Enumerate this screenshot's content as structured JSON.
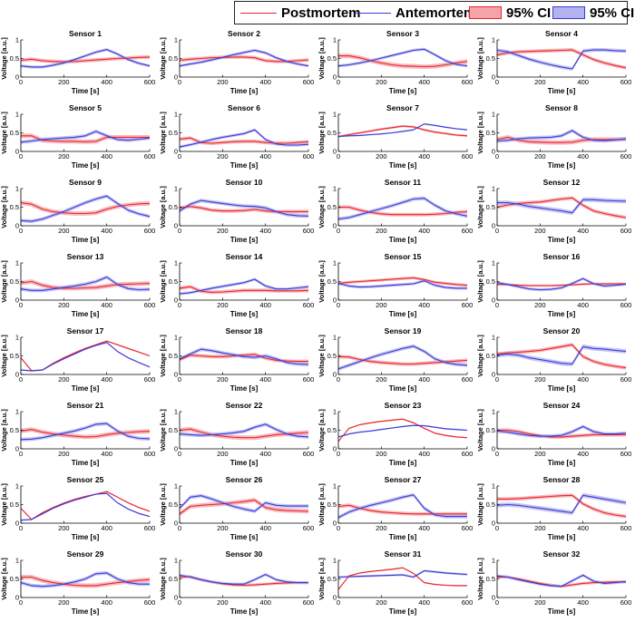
{
  "legend": {
    "postmortem_label": "Postmortem",
    "antemortem_label": "Antemortem",
    "ci_post_label": "95% CI",
    "ci_ante_label": "95% CI"
  },
  "colors": {
    "postmortem": "#e8272f",
    "antemortem": "#3b3bd6",
    "postmortem_ci": "#f4a3a8",
    "antemortem_ci": "#b3b3f0"
  },
  "chart_data": {
    "type": "line",
    "grid": false,
    "legend_position": "top",
    "layout": "8 rows x 4 columns of subplots",
    "x_label": "Time [s]",
    "y_label": "Voltage [a.u.]",
    "xlim": [
      0,
      600
    ],
    "ylim": [
      0,
      1
    ],
    "x_ticks": [
      0,
      200,
      400,
      600
    ],
    "y_ticks": [
      0,
      0.5,
      1
    ],
    "x": [
      0,
      50,
      100,
      150,
      200,
      250,
      300,
      350,
      400,
      450,
      500,
      550,
      600
    ],
    "subplots": [
      {
        "title": "Sensor 1",
        "postmortem": [
          0.45,
          0.48,
          0.44,
          0.42,
          0.41,
          0.42,
          0.44,
          0.46,
          0.48,
          0.5,
          0.51,
          0.53,
          0.54
        ],
        "antemortem": [
          0.3,
          0.27,
          0.27,
          0.32,
          0.38,
          0.47,
          0.57,
          0.67,
          0.74,
          0.62,
          0.47,
          0.37,
          0.3
        ],
        "ci_post": 0.05,
        "ci_ante": 0.04
      },
      {
        "title": "Sensor 2",
        "postmortem": [
          0.45,
          0.48,
          0.5,
          0.52,
          0.53,
          0.54,
          0.54,
          0.52,
          0.44,
          0.42,
          0.42,
          0.44,
          0.46
        ],
        "antemortem": [
          0.3,
          0.35,
          0.4,
          0.46,
          0.53,
          0.6,
          0.66,
          0.72,
          0.65,
          0.52,
          0.42,
          0.35,
          0.3
        ],
        "ci_post": 0.05,
        "ci_ante": 0.04
      },
      {
        "title": "Sensor 3",
        "postmortem": [
          0.57,
          0.57,
          0.52,
          0.44,
          0.38,
          0.33,
          0.3,
          0.29,
          0.28,
          0.29,
          0.33,
          0.38,
          0.42
        ],
        "antemortem": [
          0.3,
          0.33,
          0.38,
          0.44,
          0.51,
          0.58,
          0.65,
          0.72,
          0.75,
          0.6,
          0.44,
          0.34,
          0.3
        ],
        "ci_post": 0.06,
        "ci_ante": 0.04
      },
      {
        "title": "Sensor 4",
        "postmortem": [
          0.6,
          0.65,
          0.68,
          0.69,
          0.7,
          0.71,
          0.72,
          0.73,
          0.6,
          0.47,
          0.38,
          0.31,
          0.25
        ],
        "antemortem": [
          0.72,
          0.68,
          0.58,
          0.48,
          0.4,
          0.33,
          0.27,
          0.22,
          0.7,
          0.73,
          0.73,
          0.71,
          0.7
        ],
        "ci_post": 0.05,
        "ci_ante": 0.05
      },
      {
        "title": "Sensor 5",
        "postmortem": [
          0.42,
          0.42,
          0.3,
          0.28,
          0.27,
          0.27,
          0.26,
          0.27,
          0.38,
          0.38,
          0.38,
          0.38,
          0.38
        ],
        "antemortem": [
          0.25,
          0.28,
          0.32,
          0.34,
          0.36,
          0.38,
          0.42,
          0.54,
          0.42,
          0.32,
          0.3,
          0.33,
          0.36
        ],
        "ci_post": 0.06,
        "ci_ante": 0.05
      },
      {
        "title": "Sensor 6",
        "postmortem": [
          0.33,
          0.36,
          0.24,
          0.22,
          0.24,
          0.26,
          0.27,
          0.27,
          0.24,
          0.22,
          0.22,
          0.24,
          0.26
        ],
        "antemortem": [
          0.12,
          0.18,
          0.25,
          0.32,
          0.38,
          0.43,
          0.48,
          0.58,
          0.32,
          0.2,
          0.17,
          0.17,
          0.19
        ],
        "ci_post": 0.05,
        "ci_ante": 0.04
      },
      {
        "title": "Sensor 7",
        "postmortem": [
          0.4,
          0.45,
          0.5,
          0.55,
          0.6,
          0.64,
          0.68,
          0.66,
          0.58,
          0.52,
          0.48,
          0.44,
          0.42
        ],
        "antemortem": [
          0.4,
          0.42,
          0.43,
          0.45,
          0.47,
          0.5,
          0.54,
          0.58,
          0.74,
          0.7,
          0.65,
          0.61,
          0.58
        ],
        "ci_post": 0.03,
        "ci_ante": 0.02
      },
      {
        "title": "Sensor 8",
        "postmortem": [
          0.32,
          0.38,
          0.3,
          0.26,
          0.25,
          0.24,
          0.24,
          0.25,
          0.3,
          0.32,
          0.32,
          0.32,
          0.33
        ],
        "antemortem": [
          0.28,
          0.3,
          0.34,
          0.36,
          0.37,
          0.38,
          0.42,
          0.56,
          0.38,
          0.3,
          0.29,
          0.31,
          0.34
        ],
        "ci_post": 0.06,
        "ci_ante": 0.05
      },
      {
        "title": "Sensor 9",
        "postmortem": [
          0.62,
          0.58,
          0.45,
          0.38,
          0.35,
          0.33,
          0.33,
          0.35,
          0.45,
          0.52,
          0.56,
          0.59,
          0.6
        ],
        "antemortem": [
          0.14,
          0.12,
          0.18,
          0.28,
          0.38,
          0.5,
          0.62,
          0.72,
          0.8,
          0.6,
          0.42,
          0.32,
          0.25
        ],
        "ci_post": 0.06,
        "ci_ante": 0.05
      },
      {
        "title": "Sensor 10",
        "postmortem": [
          0.48,
          0.52,
          0.48,
          0.42,
          0.4,
          0.4,
          0.41,
          0.44,
          0.4,
          0.38,
          0.38,
          0.38,
          0.38
        ],
        "antemortem": [
          0.4,
          0.58,
          0.68,
          0.64,
          0.6,
          0.56,
          0.53,
          0.52,
          0.48,
          0.38,
          0.3,
          0.27,
          0.26
        ],
        "ci_post": 0.05,
        "ci_ante": 0.05
      },
      {
        "title": "Sensor 11",
        "postmortem": [
          0.5,
          0.5,
          0.42,
          0.36,
          0.32,
          0.3,
          0.3,
          0.3,
          0.3,
          0.31,
          0.33,
          0.36,
          0.38
        ],
        "antemortem": [
          0.18,
          0.22,
          0.3,
          0.38,
          0.46,
          0.54,
          0.63,
          0.72,
          0.74,
          0.55,
          0.4,
          0.32,
          0.26
        ],
        "ci_post": 0.05,
        "ci_ante": 0.05
      },
      {
        "title": "Sensor 12",
        "postmortem": [
          0.5,
          0.56,
          0.6,
          0.62,
          0.64,
          0.68,
          0.72,
          0.75,
          0.55,
          0.4,
          0.33,
          0.27,
          0.22
        ],
        "antemortem": [
          0.62,
          0.62,
          0.58,
          0.52,
          0.48,
          0.44,
          0.4,
          0.35,
          0.7,
          0.7,
          0.68,
          0.67,
          0.66
        ],
        "ci_post": 0.05,
        "ci_ante": 0.06
      },
      {
        "title": "Sensor 13",
        "postmortem": [
          0.46,
          0.5,
          0.4,
          0.34,
          0.32,
          0.32,
          0.33,
          0.34,
          0.38,
          0.42,
          0.43,
          0.44,
          0.45
        ],
        "antemortem": [
          0.3,
          0.26,
          0.26,
          0.3,
          0.34,
          0.38,
          0.43,
          0.5,
          0.62,
          0.42,
          0.31,
          0.28,
          0.29
        ],
        "ci_post": 0.06,
        "ci_ante": 0.05
      },
      {
        "title": "Sensor 14",
        "postmortem": [
          0.32,
          0.36,
          0.24,
          0.21,
          0.22,
          0.24,
          0.26,
          0.26,
          0.26,
          0.25,
          0.25,
          0.25,
          0.26
        ],
        "antemortem": [
          0.17,
          0.2,
          0.26,
          0.32,
          0.37,
          0.42,
          0.47,
          0.56,
          0.38,
          0.3,
          0.3,
          0.33,
          0.36
        ],
        "ci_post": 0.05,
        "ci_ante": 0.04
      },
      {
        "title": "Sensor 15",
        "postmortem": [
          0.45,
          0.48,
          0.5,
          0.52,
          0.54,
          0.56,
          0.58,
          0.6,
          0.55,
          0.48,
          0.45,
          0.42,
          0.4
        ],
        "antemortem": [
          0.45,
          0.38,
          0.35,
          0.36,
          0.38,
          0.4,
          0.42,
          0.44,
          0.52,
          0.4,
          0.34,
          0.32,
          0.32
        ],
        "ci_post": 0.04,
        "ci_ante": 0.04
      },
      {
        "title": "Sensor 16",
        "postmortem": [
          0.42,
          0.42,
          0.4,
          0.39,
          0.39,
          0.39,
          0.4,
          0.41,
          0.43,
          0.44,
          0.44,
          0.44,
          0.44
        ],
        "antemortem": [
          0.47,
          0.42,
          0.36,
          0.3,
          0.28,
          0.29,
          0.33,
          0.45,
          0.58,
          0.44,
          0.38,
          0.4,
          0.43
        ],
        "ci_post": 0.03,
        "ci_ante": 0.04
      },
      {
        "title": "Sensor 17",
        "postmortem": [
          0.45,
          0.1,
          0.12,
          0.3,
          0.45,
          0.58,
          0.7,
          0.8,
          0.9,
          0.8,
          0.7,
          0.6,
          0.5
        ],
        "antemortem": [
          0.12,
          0.1,
          0.12,
          0.28,
          0.42,
          0.55,
          0.68,
          0.78,
          0.86,
          0.62,
          0.45,
          0.32,
          0.2
        ],
        "ci_post": 0.02,
        "ci_ante": 0.02
      },
      {
        "title": "Sensor 18",
        "postmortem": [
          0.4,
          0.52,
          0.5,
          0.48,
          0.48,
          0.5,
          0.52,
          0.54,
          0.44,
          0.38,
          0.36,
          0.35,
          0.35
        ],
        "antemortem": [
          0.42,
          0.55,
          0.68,
          0.64,
          0.58,
          0.53,
          0.48,
          0.46,
          0.5,
          0.42,
          0.32,
          0.28,
          0.27
        ],
        "ci_post": 0.05,
        "ci_ante": 0.05
      },
      {
        "title": "Sensor 19",
        "postmortem": [
          0.48,
          0.47,
          0.4,
          0.35,
          0.32,
          0.3,
          0.28,
          0.28,
          0.3,
          0.32,
          0.34,
          0.36,
          0.38
        ],
        "antemortem": [
          0.15,
          0.25,
          0.35,
          0.45,
          0.54,
          0.62,
          0.7,
          0.76,
          0.62,
          0.42,
          0.32,
          0.27,
          0.25
        ],
        "ci_post": 0.05,
        "ci_ante": 0.05
      },
      {
        "title": "Sensor 20",
        "postmortem": [
          0.55,
          0.58,
          0.6,
          0.62,
          0.65,
          0.7,
          0.75,
          0.8,
          0.48,
          0.35,
          0.27,
          0.22,
          0.18
        ],
        "antemortem": [
          0.52,
          0.55,
          0.52,
          0.45,
          0.4,
          0.35,
          0.3,
          0.28,
          0.75,
          0.7,
          0.68,
          0.65,
          0.62
        ],
        "ci_post": 0.05,
        "ci_ante": 0.06
      },
      {
        "title": "Sensor 21",
        "postmortem": [
          0.48,
          0.52,
          0.45,
          0.4,
          0.37,
          0.34,
          0.32,
          0.33,
          0.38,
          0.42,
          0.44,
          0.46,
          0.47
        ],
        "antemortem": [
          0.25,
          0.26,
          0.3,
          0.36,
          0.42,
          0.48,
          0.56,
          0.66,
          0.68,
          0.48,
          0.34,
          0.28,
          0.27
        ],
        "ci_post": 0.06,
        "ci_ante": 0.05
      },
      {
        "title": "Sensor 22",
        "postmortem": [
          0.5,
          0.53,
          0.45,
          0.38,
          0.34,
          0.31,
          0.3,
          0.3,
          0.34,
          0.38,
          0.4,
          0.42,
          0.44
        ],
        "antemortem": [
          0.4,
          0.38,
          0.36,
          0.38,
          0.4,
          0.43,
          0.47,
          0.58,
          0.66,
          0.52,
          0.4,
          0.34,
          0.32
        ],
        "ci_post": 0.06,
        "ci_ante": 0.05
      },
      {
        "title": "Sensor 23",
        "postmortem": [
          0.2,
          0.55,
          0.65,
          0.7,
          0.74,
          0.77,
          0.8,
          0.7,
          0.55,
          0.42,
          0.36,
          0.32,
          0.3
        ],
        "antemortem": [
          0.32,
          0.4,
          0.45,
          0.48,
          0.52,
          0.56,
          0.6,
          0.63,
          0.62,
          0.58,
          0.54,
          0.52,
          0.5
        ],
        "ci_post": 0.02,
        "ci_ante": 0.02
      },
      {
        "title": "Sensor 24",
        "postmortem": [
          0.5,
          0.5,
          0.46,
          0.4,
          0.35,
          0.32,
          0.32,
          0.34,
          0.36,
          0.38,
          0.38,
          0.38,
          0.38
        ],
        "antemortem": [
          0.48,
          0.45,
          0.4,
          0.36,
          0.34,
          0.34,
          0.36,
          0.46,
          0.6,
          0.46,
          0.4,
          0.4,
          0.42
        ],
        "ci_post": 0.05,
        "ci_ante": 0.05
      },
      {
        "title": "Sensor 25",
        "postmortem": [
          0.4,
          0.1,
          0.28,
          0.42,
          0.54,
          0.64,
          0.72,
          0.78,
          0.85,
          0.7,
          0.55,
          0.42,
          0.32
        ],
        "antemortem": [
          0.08,
          0.1,
          0.25,
          0.4,
          0.52,
          0.62,
          0.7,
          0.78,
          0.8,
          0.55,
          0.38,
          0.26,
          0.18
        ],
        "ci_post": 0.02,
        "ci_ante": 0.02
      },
      {
        "title": "Sensor 26",
        "postmortem": [
          0.25,
          0.45,
          0.48,
          0.5,
          0.52,
          0.55,
          0.58,
          0.62,
          0.42,
          0.36,
          0.34,
          0.33,
          0.32
        ],
        "antemortem": [
          0.4,
          0.7,
          0.74,
          0.65,
          0.55,
          0.45,
          0.38,
          0.32,
          0.55,
          0.48,
          0.46,
          0.46,
          0.46
        ],
        "ci_post": 0.06,
        "ci_ante": 0.05
      },
      {
        "title": "Sensor 27",
        "postmortem": [
          0.45,
          0.48,
          0.4,
          0.34,
          0.3,
          0.28,
          0.26,
          0.25,
          0.25,
          0.25,
          0.25,
          0.25,
          0.25
        ],
        "antemortem": [
          0.15,
          0.3,
          0.4,
          0.48,
          0.55,
          0.62,
          0.7,
          0.76,
          0.4,
          0.22,
          0.18,
          0.18,
          0.18
        ],
        "ci_post": 0.05,
        "ci_ante": 0.05
      },
      {
        "title": "Sensor 28",
        "postmortem": [
          0.65,
          0.65,
          0.66,
          0.68,
          0.7,
          0.72,
          0.74,
          0.75,
          0.52,
          0.38,
          0.28,
          0.22,
          0.18
        ],
        "antemortem": [
          0.48,
          0.5,
          0.48,
          0.44,
          0.4,
          0.36,
          0.32,
          0.28,
          0.75,
          0.7,
          0.65,
          0.6,
          0.55
        ],
        "ci_post": 0.05,
        "ci_ante": 0.06
      },
      {
        "title": "Sensor 29",
        "postmortem": [
          0.55,
          0.55,
          0.46,
          0.4,
          0.36,
          0.33,
          0.32,
          0.32,
          0.36,
          0.4,
          0.43,
          0.46,
          0.48
        ],
        "antemortem": [
          0.4,
          0.32,
          0.3,
          0.32,
          0.36,
          0.42,
          0.5,
          0.64,
          0.66,
          0.5,
          0.4,
          0.36,
          0.36
        ],
        "ci_post": 0.06,
        "ci_ante": 0.05
      },
      {
        "title": "Sensor 30",
        "postmortem": [
          0.55,
          0.56,
          0.48,
          0.42,
          0.37,
          0.34,
          0.33,
          0.34,
          0.36,
          0.38,
          0.39,
          0.4,
          0.4
        ],
        "antemortem": [
          0.6,
          0.55,
          0.48,
          0.42,
          0.38,
          0.36,
          0.36,
          0.48,
          0.62,
          0.48,
          0.42,
          0.4,
          0.4
        ],
        "ci_post": 0.04,
        "ci_ante": 0.04
      },
      {
        "title": "Sensor 31",
        "postmortem": [
          0.22,
          0.58,
          0.66,
          0.7,
          0.73,
          0.76,
          0.8,
          0.65,
          0.4,
          0.35,
          0.33,
          0.32,
          0.32
        ],
        "antemortem": [
          0.55,
          0.56,
          0.57,
          0.58,
          0.59,
          0.6,
          0.61,
          0.55,
          0.72,
          0.69,
          0.66,
          0.64,
          0.62
        ],
        "ci_post": 0.02,
        "ci_ante": 0.03
      },
      {
        "title": "Sensor 32",
        "postmortem": [
          0.55,
          0.55,
          0.5,
          0.44,
          0.38,
          0.33,
          0.3,
          0.34,
          0.38,
          0.4,
          0.41,
          0.42,
          0.42
        ],
        "antemortem": [
          0.58,
          0.55,
          0.48,
          0.42,
          0.36,
          0.32,
          0.3,
          0.45,
          0.6,
          0.44,
          0.38,
          0.4,
          0.43
        ],
        "ci_post": 0.04,
        "ci_ante": 0.04
      }
    ]
  }
}
